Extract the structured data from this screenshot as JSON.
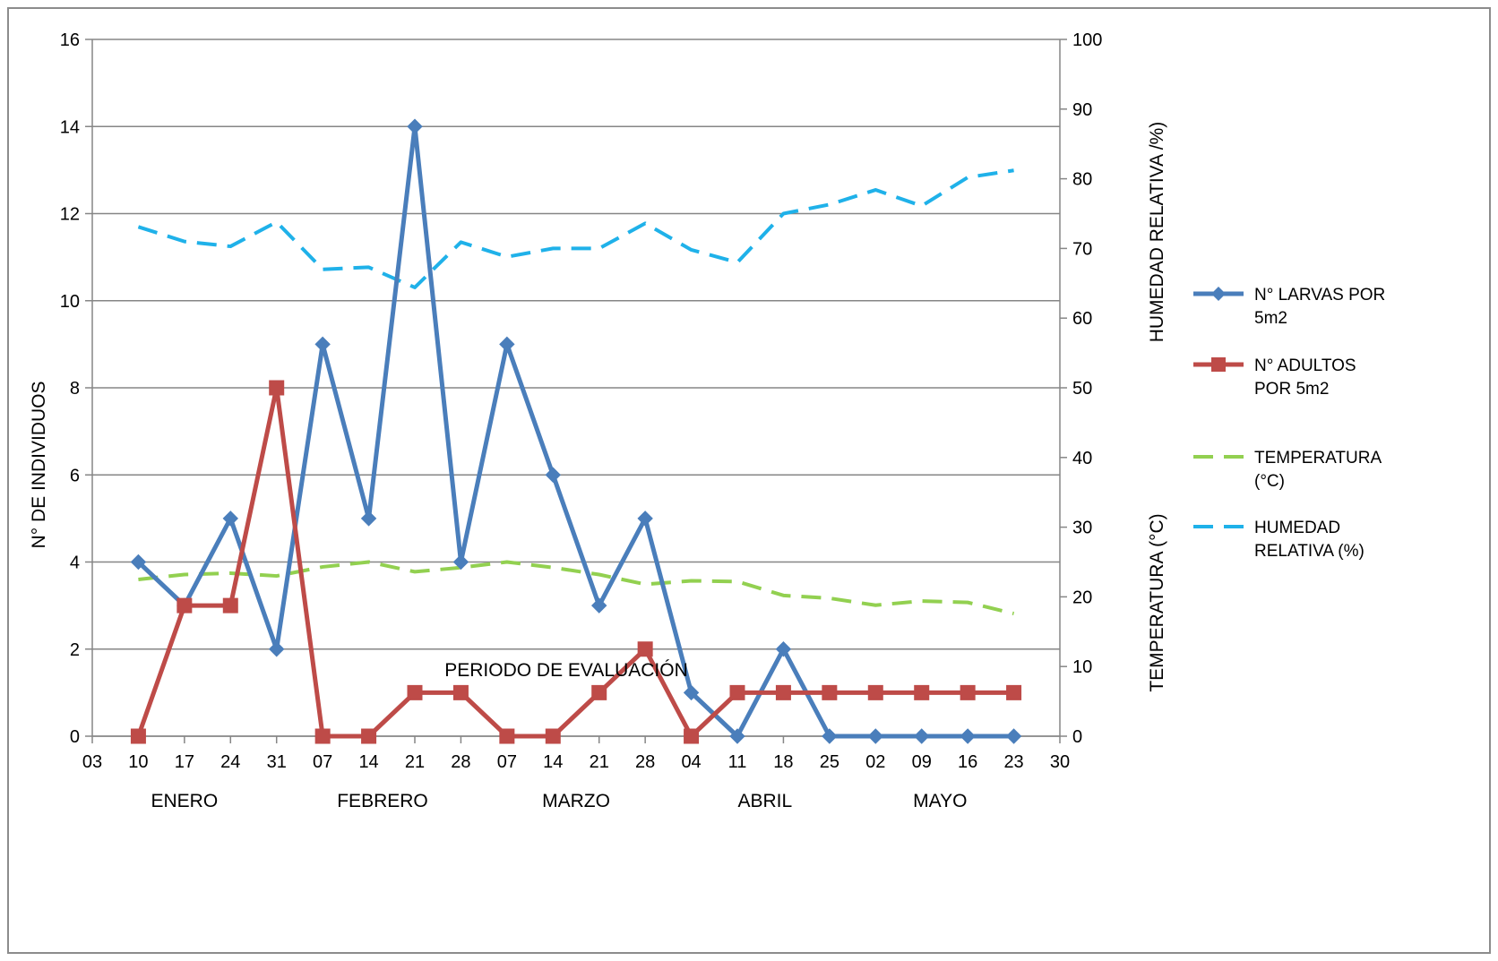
{
  "chart_data": {
    "type": "line",
    "title": "",
    "xlabel": "PERIODO DE EVALUACIÓN",
    "ylabel_left": "N° DE INDIVIDUOS",
    "ylabel_right_top": "HUMEDAD RELATIVA /%)",
    "ylabel_right_bottom": "TEMPERATURA (°C)",
    "y_left_lim": [
      0,
      16
    ],
    "y_left_ticks": [
      "0",
      "2",
      "4",
      "6",
      "8",
      "10",
      "12",
      "14",
      "16"
    ],
    "y_right_lim": [
      0,
      100
    ],
    "y_right_ticks": [
      "0",
      "10",
      "20",
      "30",
      "40",
      "50",
      "60",
      "70",
      "80",
      "90",
      "100"
    ],
    "x_tick_labels": [
      "03",
      "10",
      "17",
      "24",
      "31",
      "07",
      "14",
      "21",
      "28",
      "07",
      "14",
      "21",
      "28",
      "04",
      "11",
      "18",
      "25",
      "02",
      "09",
      "16",
      "23",
      "30"
    ],
    "months": [
      {
        "label": "ENERO",
        "center_tick": 2
      },
      {
        "label": "FEBRERO",
        "center_tick": 6.3
      },
      {
        "label": "MARZO",
        "center_tick": 10.5
      },
      {
        "label": "ABRIL",
        "center_tick": 14.6
      },
      {
        "label": "MAYO",
        "center_tick": 18.4
      }
    ],
    "grid": "horizontal",
    "legend_position": "right",
    "series": [
      {
        "name": "N° LARVAS POR 5m2",
        "legend_lines": [
          "N° LARVAS POR",
          "5m2"
        ],
        "axis": "left",
        "style": "solid-diamond",
        "color": "#4a7ebb",
        "values": [
          4,
          3,
          5,
          2,
          9,
          5,
          14,
          4,
          9,
          6,
          3,
          5,
          1,
          0,
          2,
          0,
          0,
          0,
          0,
          0
        ]
      },
      {
        "name": "N° ADULTOS POR 5m2",
        "legend_lines": [
          "N° ADULTOS",
          "POR 5m2"
        ],
        "axis": "left",
        "style": "solid-square",
        "color": "#be4b48",
        "values": [
          0,
          3,
          3,
          8,
          0,
          0,
          1,
          1,
          0,
          0,
          1,
          2,
          0,
          1,
          1,
          1,
          1,
          1,
          1,
          1
        ]
      },
      {
        "name": "TEMPERATURA (°C)",
        "legend_lines": [
          "TEMPERATURA",
          "(°C)"
        ],
        "axis": "right",
        "style": "dashed",
        "color": "#92d050",
        "values": [
          22.5,
          23.2,
          23.4,
          23,
          24.3,
          25,
          23.6,
          24.2,
          25,
          24.2,
          23.2,
          21.8,
          22.3,
          22.2,
          20.2,
          19.8,
          18.8,
          19.4,
          19.2,
          17.6
        ]
      },
      {
        "name": "HUMEDAD RELATIVA (%)",
        "legend_lines": [
          "HUMEDAD",
          "RELATIVA (%)"
        ],
        "axis": "right",
        "style": "dashed",
        "color": "#1fb1e9",
        "values": [
          73.1,
          71,
          70.3,
          73.8,
          67,
          67.3,
          64.4,
          70.9,
          68.8,
          70,
          70,
          73.6,
          69.8,
          68,
          75,
          76.3,
          78.4,
          76.1,
          80.2,
          81.2
        ]
      }
    ]
  }
}
